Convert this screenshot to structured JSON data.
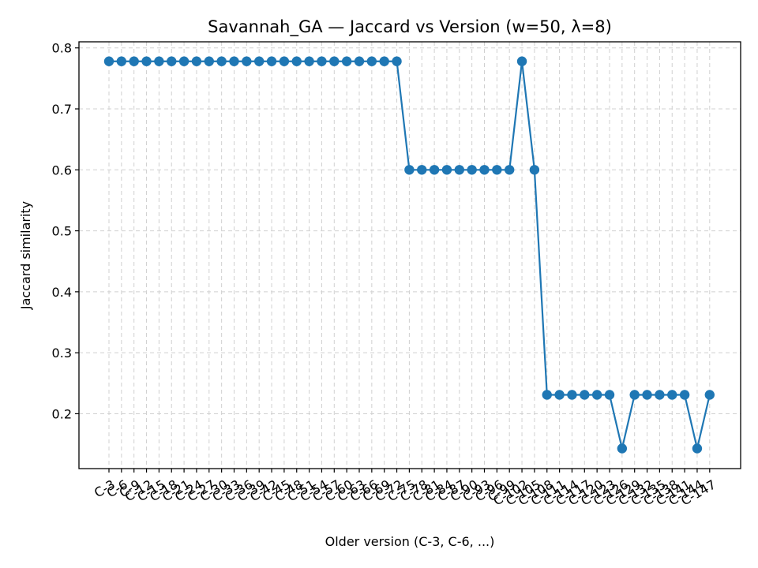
{
  "chart_data": {
    "type": "line",
    "title": "Savannah_GA — Jaccard vs Version (w=50, λ=8)",
    "xlabel": "Older version (C-3, C-6, ...)",
    "ylabel": "Jaccard similarity",
    "ylim": [
      0.11,
      0.81
    ],
    "yticks": [
      0.2,
      0.3,
      0.4,
      0.5,
      0.6,
      0.7,
      0.8
    ],
    "ytick_labels": [
      "0.2",
      "0.3",
      "0.4",
      "0.5",
      "0.6",
      "0.7",
      "0.8"
    ],
    "grid": true,
    "marker": "circle",
    "color": "#1f77b4",
    "x": [
      "C-3",
      "C-6",
      "C-9",
      "C-12",
      "C-15",
      "C-18",
      "C-21",
      "C-24",
      "C-27",
      "C-30",
      "C-33",
      "C-36",
      "C-39",
      "C-42",
      "C-45",
      "C-48",
      "C-51",
      "C-54",
      "C-57",
      "C-60",
      "C-63",
      "C-66",
      "C-69",
      "C-72",
      "C-75",
      "C-78",
      "C-81",
      "C-84",
      "C-87",
      "C-90",
      "C-93",
      "C-96",
      "C-99",
      "C-102",
      "C-105",
      "C-108",
      "C-111",
      "C-114",
      "C-117",
      "C-120",
      "C-123",
      "C-126",
      "C-129",
      "C-132",
      "C-135",
      "C-138",
      "C-141",
      "C-144",
      "C-147"
    ],
    "series": [
      {
        "values": [
          0.778,
          0.778,
          0.778,
          0.778,
          0.778,
          0.778,
          0.778,
          0.778,
          0.778,
          0.778,
          0.778,
          0.778,
          0.778,
          0.778,
          0.778,
          0.778,
          0.778,
          0.778,
          0.778,
          0.778,
          0.778,
          0.778,
          0.778,
          0.778,
          0.6,
          0.6,
          0.6,
          0.6,
          0.6,
          0.6,
          0.6,
          0.6,
          0.6,
          0.778,
          0.6,
          0.231,
          0.231,
          0.231,
          0.231,
          0.231,
          0.231,
          0.143,
          0.231,
          0.231,
          0.231,
          0.231,
          0.231,
          0.143,
          0.231
        ]
      }
    ]
  }
}
